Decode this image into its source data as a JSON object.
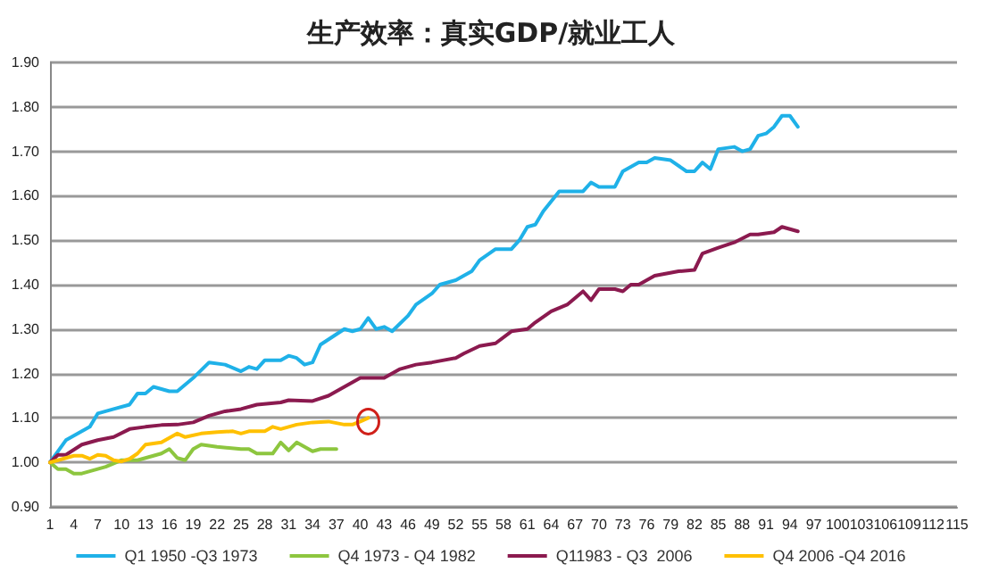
{
  "chart_data": {
    "type": "line",
    "title": "生产效率：真实GDP/就业工人",
    "xlim": [
      1,
      115
    ],
    "xticks": [
      1,
      4,
      7,
      10,
      13,
      16,
      19,
      22,
      25,
      28,
      31,
      34,
      37,
      40,
      43,
      46,
      49,
      52,
      55,
      58,
      61,
      64,
      67,
      70,
      73,
      76,
      79,
      82,
      85,
      88,
      91,
      94,
      97,
      100,
      103,
      106,
      109,
      112,
      115
    ],
    "ylim": [
      0.9,
      1.9
    ],
    "yticks": [
      {
        "value": 0.9,
        "label": "0.90"
      },
      {
        "value": 1.0,
        "label": "1.00"
      },
      {
        "value": 1.1,
        "label": "1.10"
      },
      {
        "value": 1.2,
        "label": "1.20"
      },
      {
        "value": 1.3,
        "label": "1.30"
      },
      {
        "value": 1.4,
        "label": "1.40"
      },
      {
        "value": 1.5,
        "label": "1.50"
      },
      {
        "value": 1.6,
        "label": "1.60"
      },
      {
        "value": 1.7,
        "label": "1.70"
      },
      {
        "value": 1.8,
        "label": "1.80"
      },
      {
        "value": 1.9,
        "label": "1.90"
      }
    ],
    "grid": "y",
    "legend": "bottom",
    "marker": "none",
    "line_style": "solid",
    "series": [
      {
        "name": "Q1 1950 -Q3 1973",
        "color": "#1fb1e8",
        "x": [
          1,
          3,
          6,
          7,
          9,
          11,
          12,
          13,
          14,
          16,
          17,
          19,
          21,
          23,
          25,
          26,
          27,
          28,
          30,
          31,
          32,
          33,
          34,
          35,
          38,
          39,
          40,
          41,
          42,
          43,
          44,
          46,
          47,
          49,
          50,
          52,
          54,
          55,
          57,
          59,
          60,
          61,
          62,
          63,
          65,
          68,
          69,
          70,
          72,
          73,
          75,
          76,
          77,
          79,
          81,
          82,
          83,
          84,
          85,
          87,
          88,
          89,
          90,
          91,
          92,
          93,
          94,
          95
        ],
        "values": [
          1.0,
          1.05,
          1.08,
          1.11,
          1.12,
          1.13,
          1.155,
          1.155,
          1.17,
          1.16,
          1.16,
          1.19,
          1.225,
          1.22,
          1.205,
          1.215,
          1.21,
          1.23,
          1.23,
          1.24,
          1.235,
          1.22,
          1.225,
          1.265,
          1.3,
          1.295,
          1.3,
          1.325,
          1.3,
          1.305,
          1.295,
          1.33,
          1.355,
          1.38,
          1.4,
          1.41,
          1.43,
          1.455,
          1.48,
          1.48,
          1.5,
          1.53,
          1.535,
          1.565,
          1.61,
          1.61,
          1.63,
          1.62,
          1.62,
          1.655,
          1.675,
          1.675,
          1.685,
          1.68,
          1.655,
          1.655,
          1.675,
          1.66,
          1.705,
          1.71,
          1.7,
          1.705,
          1.735,
          1.74,
          1.755,
          1.78,
          1.78,
          1.755
        ]
      },
      {
        "name": "Q4 1973 - Q4 1982",
        "color": "#8dc63f",
        "x": [
          1,
          2,
          3,
          4,
          5,
          6,
          8,
          10,
          12,
          14,
          15,
          16,
          17,
          18,
          19,
          20,
          22,
          25,
          26,
          27,
          29,
          30,
          31,
          32,
          33,
          34,
          35,
          37
        ],
        "values": [
          1.0,
          0.985,
          0.985,
          0.975,
          0.975,
          0.98,
          0.99,
          1.005,
          1.005,
          1.015,
          1.02,
          1.03,
          1.01,
          1.005,
          1.03,
          1.04,
          1.035,
          1.03,
          1.03,
          1.02,
          1.02,
          1.045,
          1.027,
          1.045,
          1.035,
          1.025,
          1.03,
          1.03
        ]
      },
      {
        "name": "Q11983 - Q3  2006",
        "color": "#8b1a4f",
        "x": [
          1,
          2,
          3,
          5,
          7,
          9,
          11,
          13,
          15,
          17,
          19,
          21,
          23,
          25,
          27,
          30,
          31,
          34,
          36,
          38,
          40,
          43,
          45,
          47,
          49,
          52,
          53,
          55,
          57,
          59,
          61,
          62,
          64,
          66,
          67,
          68,
          69,
          70,
          72,
          73,
          74,
          75,
          77,
          80,
          82,
          83,
          85,
          87,
          89,
          90,
          92,
          93,
          94,
          95
        ],
        "values": [
          1.0,
          1.017,
          1.017,
          1.04,
          1.05,
          1.057,
          1.075,
          1.08,
          1.084,
          1.085,
          1.09,
          1.105,
          1.115,
          1.12,
          1.13,
          1.135,
          1.14,
          1.138,
          1.15,
          1.17,
          1.19,
          1.19,
          1.21,
          1.22,
          1.225,
          1.235,
          1.245,
          1.262,
          1.268,
          1.295,
          1.3,
          1.315,
          1.34,
          1.355,
          1.37,
          1.385,
          1.365,
          1.39,
          1.39,
          1.385,
          1.4,
          1.4,
          1.42,
          1.43,
          1.433,
          1.47,
          1.483,
          1.495,
          1.513,
          1.513,
          1.518,
          1.53,
          1.525,
          1.52
        ]
      },
      {
        "name": "Q4 2006 -Q4 2016",
        "color": "#ffc000",
        "x": [
          1,
          2,
          4,
          5,
          6,
          7,
          8,
          9,
          10,
          11,
          12,
          13,
          15,
          17,
          18,
          20,
          22,
          24,
          25,
          26,
          28,
          29,
          30,
          32,
          34,
          36,
          38,
          39,
          40,
          41
        ],
        "values": [
          1.0,
          1.005,
          1.015,
          1.015,
          1.008,
          1.017,
          1.015,
          1.005,
          1.002,
          1.008,
          1.02,
          1.04,
          1.045,
          1.065,
          1.057,
          1.065,
          1.068,
          1.07,
          1.065,
          1.07,
          1.07,
          1.08,
          1.075,
          1.085,
          1.09,
          1.092,
          1.085,
          1.085,
          1.092,
          1.1
        ]
      }
    ]
  }
}
